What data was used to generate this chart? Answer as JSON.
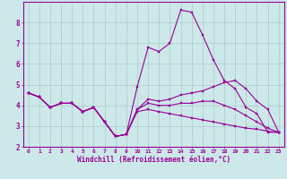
{
  "xlabel": "Windchill (Refroidissement éolien,°C)",
  "background_color": "#cce8e8",
  "grid_color": "#aacccc",
  "line_color": "#990099",
  "xlim": [
    -0.5,
    23.5
  ],
  "ylim": [
    2.0,
    9.0
  ],
  "yticks": [
    2,
    3,
    4,
    5,
    6,
    7,
    8
  ],
  "xticks": [
    0,
    1,
    2,
    3,
    4,
    5,
    6,
    7,
    8,
    9,
    10,
    11,
    12,
    13,
    14,
    15,
    16,
    17,
    18,
    19,
    20,
    21,
    22,
    23
  ],
  "series": [
    [
      4.6,
      4.4,
      3.9,
      4.1,
      4.1,
      3.7,
      3.9,
      3.2,
      2.5,
      2.6,
      4.9,
      6.8,
      6.6,
      7.0,
      8.6,
      8.5,
      7.4,
      6.2,
      5.2,
      4.8,
      3.9,
      3.6,
      2.7,
      2.7
    ],
    [
      4.6,
      4.4,
      3.9,
      4.1,
      4.1,
      3.7,
      3.9,
      3.2,
      2.5,
      2.6,
      3.8,
      4.3,
      4.2,
      4.3,
      4.5,
      4.6,
      4.7,
      4.9,
      5.1,
      5.2,
      4.8,
      4.2,
      3.8,
      2.7
    ],
    [
      4.6,
      4.4,
      3.9,
      4.1,
      4.1,
      3.7,
      3.9,
      3.2,
      2.5,
      2.6,
      3.8,
      4.1,
      4.0,
      4.0,
      4.1,
      4.1,
      4.2,
      4.2,
      4.0,
      3.8,
      3.5,
      3.2,
      2.9,
      2.7
    ],
    [
      4.6,
      4.4,
      3.9,
      4.1,
      4.1,
      3.7,
      3.9,
      3.2,
      2.5,
      2.6,
      3.7,
      3.8,
      3.7,
      3.6,
      3.5,
      3.4,
      3.3,
      3.2,
      3.1,
      3.0,
      2.9,
      2.85,
      2.75,
      2.7
    ]
  ]
}
